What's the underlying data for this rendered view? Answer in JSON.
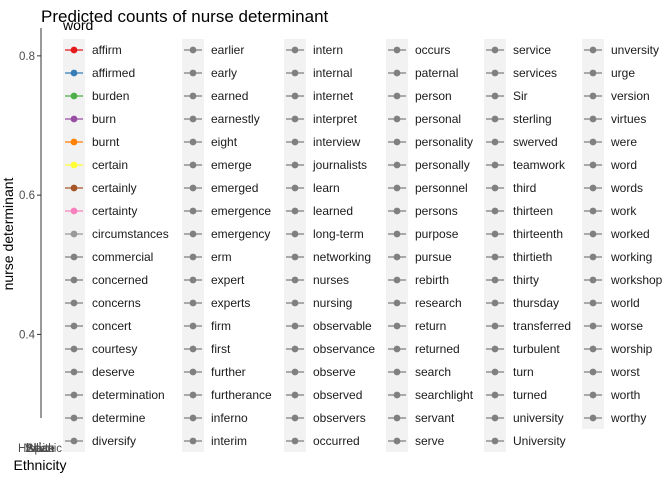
{
  "chart_data": {
    "type": "scatter",
    "title": "Predicted counts of nurse determinant",
    "xlabel": "Ethnicity",
    "ylabel": "nurse determinant",
    "x_tick_labels": [
      "Hispanic",
      "Black",
      "Asian",
      "White"
    ],
    "y_ticks": [
      0.4,
      0.6,
      0.8
    ],
    "ylim": [
      0.28,
      0.84
    ],
    "legend_title": "word",
    "legend_position": "right",
    "default_color": "#808080",
    "legend_items": [
      {
        "label": "affirm",
        "color": "#E41A1C"
      },
      {
        "label": "affirmed",
        "color": "#377EB8"
      },
      {
        "label": "burden",
        "color": "#4DAF4A"
      },
      {
        "label": "burn",
        "color": "#984EA3"
      },
      {
        "label": "burnt",
        "color": "#FF7F00"
      },
      {
        "label": "certain",
        "color": "#FFFF33"
      },
      {
        "label": "certainly",
        "color": "#A65628"
      },
      {
        "label": "certainty",
        "color": "#F781BF"
      },
      {
        "label": "circumstances",
        "color": "#999999"
      },
      {
        "label": "commercial"
      },
      {
        "label": "concerned"
      },
      {
        "label": "concerns"
      },
      {
        "label": "concert"
      },
      {
        "label": "courtesy"
      },
      {
        "label": "deserve"
      },
      {
        "label": "determination"
      },
      {
        "label": "determine"
      },
      {
        "label": "diversify"
      },
      {
        "label": "earlier"
      },
      {
        "label": "early"
      },
      {
        "label": "earned"
      },
      {
        "label": "earnestly"
      },
      {
        "label": "eight"
      },
      {
        "label": "emerge"
      },
      {
        "label": "emerged"
      },
      {
        "label": "emergence"
      },
      {
        "label": "emergency"
      },
      {
        "label": "erm"
      },
      {
        "label": "expert"
      },
      {
        "label": "experts"
      },
      {
        "label": "firm"
      },
      {
        "label": "first"
      },
      {
        "label": "further"
      },
      {
        "label": "furtherance"
      },
      {
        "label": "inferno"
      },
      {
        "label": "interim"
      },
      {
        "label": "intern"
      },
      {
        "label": "internal"
      },
      {
        "label": "internet"
      },
      {
        "label": "interpret"
      },
      {
        "label": "interview"
      },
      {
        "label": "journalists"
      },
      {
        "label": "learn"
      },
      {
        "label": "learned"
      },
      {
        "label": "long-term"
      },
      {
        "label": "networking"
      },
      {
        "label": "nurses"
      },
      {
        "label": "nursing"
      },
      {
        "label": "observable"
      },
      {
        "label": "observance"
      },
      {
        "label": "observe"
      },
      {
        "label": "observed"
      },
      {
        "label": "observers"
      },
      {
        "label": "occurred"
      },
      {
        "label": "occurs"
      },
      {
        "label": "paternal"
      },
      {
        "label": "person"
      },
      {
        "label": "personal"
      },
      {
        "label": "personality"
      },
      {
        "label": "personally"
      },
      {
        "label": "personnel"
      },
      {
        "label": "persons"
      },
      {
        "label": "purpose"
      },
      {
        "label": "pursue"
      },
      {
        "label": "rebirth"
      },
      {
        "label": "research"
      },
      {
        "label": "return"
      },
      {
        "label": "returned"
      },
      {
        "label": "search"
      },
      {
        "label": "searchlight"
      },
      {
        "label": "servant"
      },
      {
        "label": "serve"
      },
      {
        "label": "service"
      },
      {
        "label": "services"
      },
      {
        "label": "Sir"
      },
      {
        "label": "sterling"
      },
      {
        "label": "swerved"
      },
      {
        "label": "teamwork"
      },
      {
        "label": "third"
      },
      {
        "label": "thirteen"
      },
      {
        "label": "thirteenth"
      },
      {
        "label": "thirtieth"
      },
      {
        "label": "thirty"
      },
      {
        "label": "thursday"
      },
      {
        "label": "transferred"
      },
      {
        "label": "turbulent"
      },
      {
        "label": "turn"
      },
      {
        "label": "turned"
      },
      {
        "label": "university"
      },
      {
        "label": "University"
      },
      {
        "label": "unversity"
      },
      {
        "label": "urge"
      },
      {
        "label": "version"
      },
      {
        "label": "virtues"
      },
      {
        "label": "were"
      },
      {
        "label": "word"
      },
      {
        "label": "words"
      },
      {
        "label": "work"
      },
      {
        "label": "worked"
      },
      {
        "label": "working"
      },
      {
        "label": "workshop"
      },
      {
        "label": "world"
      },
      {
        "label": "worse"
      },
      {
        "label": "worship"
      },
      {
        "label": "worst"
      },
      {
        "label": "worth"
      },
      {
        "label": "worthy"
      }
    ]
  }
}
